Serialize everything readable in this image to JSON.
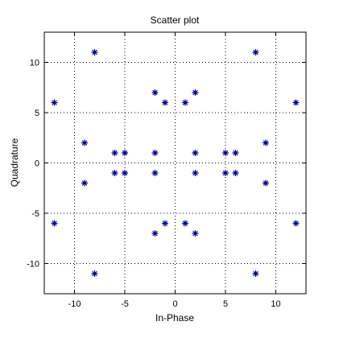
{
  "figure": {
    "background": "#ffffff"
  },
  "chart_data": {
    "type": "scatter",
    "title": "Scatter plot",
    "xlabel": "In-Phase",
    "ylabel": "Quadrature",
    "xlim": [
      -13,
      13
    ],
    "ylim": [
      -13,
      13
    ],
    "xticks": [
      -10,
      -5,
      0,
      5,
      10
    ],
    "yticks": [
      -10,
      -5,
      0,
      5,
      10
    ],
    "grid": true,
    "legend": "none",
    "marker": "asterisk",
    "marker_color": "#00008b",
    "series": [
      {
        "points": [
          [
            -12,
            6
          ],
          [
            -12,
            -6
          ],
          [
            -9,
            2
          ],
          [
            -9,
            -2
          ],
          [
            -8,
            11
          ],
          [
            -8,
            -11
          ],
          [
            -6,
            1
          ],
          [
            -6,
            -1
          ],
          [
            -5,
            1
          ],
          [
            -5,
            -1
          ],
          [
            -2,
            7
          ],
          [
            -2,
            1
          ],
          [
            -2,
            -1
          ],
          [
            -2,
            -7
          ],
          [
            -1,
            6
          ],
          [
            -1,
            -6
          ],
          [
            1,
            6
          ],
          [
            1,
            -6
          ],
          [
            2,
            7
          ],
          [
            2,
            1
          ],
          [
            2,
            -1
          ],
          [
            2,
            -7
          ],
          [
            5,
            1
          ],
          [
            5,
            -1
          ],
          [
            6,
            1
          ],
          [
            6,
            -1
          ],
          [
            8,
            11
          ],
          [
            8,
            -11
          ],
          [
            9,
            2
          ],
          [
            9,
            -2
          ],
          [
            12,
            6
          ],
          [
            12,
            -6
          ]
        ]
      }
    ]
  }
}
